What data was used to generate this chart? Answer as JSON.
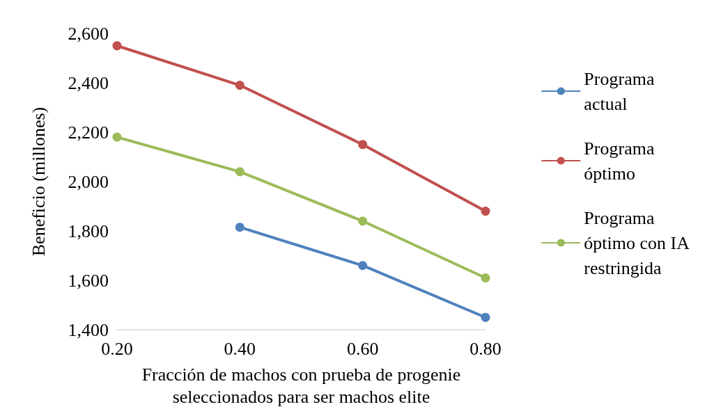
{
  "chart_data": {
    "type": "line",
    "xlabel": "Fracción de machos con prueba de progenie\nseleccionados para ser machos elite",
    "ylabel": "Beneficio (millones)",
    "categories": [
      "0.20",
      "0.40",
      "0.60",
      "0.80"
    ],
    "series": [
      {
        "name": "Programa\nactual",
        "color": "#4f81bd",
        "values": [
          null,
          1815,
          1660,
          1450
        ]
      },
      {
        "name": "Programa\nóptimo",
        "color": "#c0504d",
        "values": [
          2550,
          2390,
          2150,
          1880
        ]
      },
      {
        "name": "Programa\nóptimo con IA\nrestringida",
        "color": "#9bbb59",
        "values": [
          2180,
          2040,
          1840,
          1610
        ]
      }
    ],
    "ylim": [
      1400,
      2600
    ],
    "yticks": [
      {
        "value": 1400,
        "label": "1,400"
      },
      {
        "value": 1600,
        "label": "1,600"
      },
      {
        "value": 1800,
        "label": "1,800"
      },
      {
        "value": 2000,
        "label": "2,000"
      },
      {
        "value": 2200,
        "label": "2,200"
      },
      {
        "value": 2400,
        "label": "2,400"
      },
      {
        "value": 2600,
        "label": "2,600"
      }
    ],
    "grid": false,
    "legend": "right",
    "marker": "circle",
    "line_style": "solid"
  }
}
